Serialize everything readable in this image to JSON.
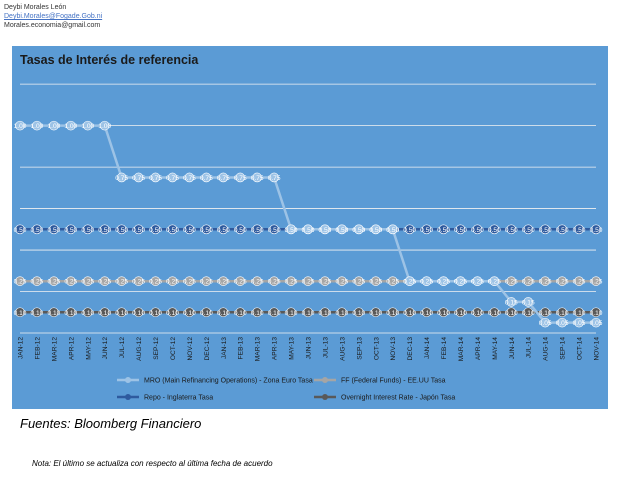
{
  "header": {
    "name": "Deybi Morales León",
    "email1": "Deybi.Morales@Fogade.Gob.ni",
    "email2": "Morales.economia@gmail.com"
  },
  "source_text": "Fuentes: Bloomberg Financiero",
  "note_text": "Nota: El último se actualiza con respecto al última fecha de acuerdo",
  "chart_data": {
    "type": "line",
    "title": "Tasas de Interés de referencia",
    "xlabel": "",
    "ylabel": "",
    "ylim": [
      0,
      1.22
    ],
    "grid": true,
    "legend_placement": "bottom",
    "categories": [
      "JAN-12",
      "FEB-12",
      "MAR-12",
      "APR-12",
      "MAY-12",
      "JUN-12",
      "JUL-12",
      "AUG-12",
      "SEP-12",
      "OCT-12",
      "NOV-12",
      "DEC-12",
      "JAN-13",
      "FEB-13",
      "MAR-13",
      "APR-13",
      "MAY-13",
      "JUN-13",
      "JUL-13",
      "AUG-13",
      "SEP-13",
      "OCT-13",
      "NOV-13",
      "DEC-13",
      "JAN-14",
      "FEB-14",
      "MAR-14",
      "APR-14",
      "MAY-14",
      "JUN-14",
      "JUL-14",
      "AUG-14",
      "SEP-14",
      "OCT-14",
      "NOV-14"
    ],
    "series": [
      {
        "name": "MRO (Main Refinancing Operations) - Zona Euro Tasa",
        "color": "#9dc3e6",
        "values": [
          1.0,
          1.0,
          1.0,
          1.0,
          1.0,
          1.0,
          0.75,
          0.75,
          0.75,
          0.75,
          0.75,
          0.75,
          0.75,
          0.75,
          0.75,
          0.75,
          0.5,
          0.5,
          0.5,
          0.5,
          0.5,
          0.5,
          0.5,
          0.25,
          0.25,
          0.25,
          0.25,
          0.25,
          0.25,
          0.15,
          0.15,
          0.05,
          0.05,
          0.05,
          0.05
        ]
      },
      {
        "name": "FF (Federal Funds) - EE.UU Tasa",
        "color": "#a5a5a5",
        "values": [
          0.25,
          0.25,
          0.25,
          0.25,
          0.25,
          0.25,
          0.25,
          0.25,
          0.25,
          0.25,
          0.25,
          0.25,
          0.25,
          0.25,
          0.25,
          0.25,
          0.25,
          0.25,
          0.25,
          0.25,
          0.25,
          0.25,
          0.25,
          0.25,
          0.25,
          0.25,
          0.25,
          0.25,
          0.25,
          0.25,
          0.25,
          0.25,
          0.25,
          0.25,
          0.25
        ]
      },
      {
        "name": "Repo - Inglaterra Tasa",
        "color": "#2e5a9e",
        "values": [
          0.5,
          0.5,
          0.5,
          0.5,
          0.5,
          0.5,
          0.5,
          0.5,
          0.5,
          0.5,
          0.5,
          0.5,
          0.5,
          0.5,
          0.5,
          0.5,
          0.5,
          0.5,
          0.5,
          0.5,
          0.5,
          0.5,
          0.5,
          0.5,
          0.5,
          0.5,
          0.5,
          0.5,
          0.5,
          0.5,
          0.5,
          0.5,
          0.5,
          0.5,
          0.5
        ]
      },
      {
        "name": "Overnight Interest Rate - Japón Tasa",
        "color": "#595959",
        "values": [
          0.1,
          0.1,
          0.1,
          0.1,
          0.1,
          0.1,
          0.1,
          0.1,
          0.1,
          0.1,
          0.1,
          0.1,
          0.1,
          0.1,
          0.1,
          0.1,
          0.1,
          0.1,
          0.1,
          0.1,
          0.1,
          0.1,
          0.1,
          0.1,
          0.1,
          0.1,
          0.1,
          0.1,
          0.1,
          0.1,
          0.1,
          0.1,
          0.1,
          0.1,
          0.1
        ]
      }
    ]
  }
}
